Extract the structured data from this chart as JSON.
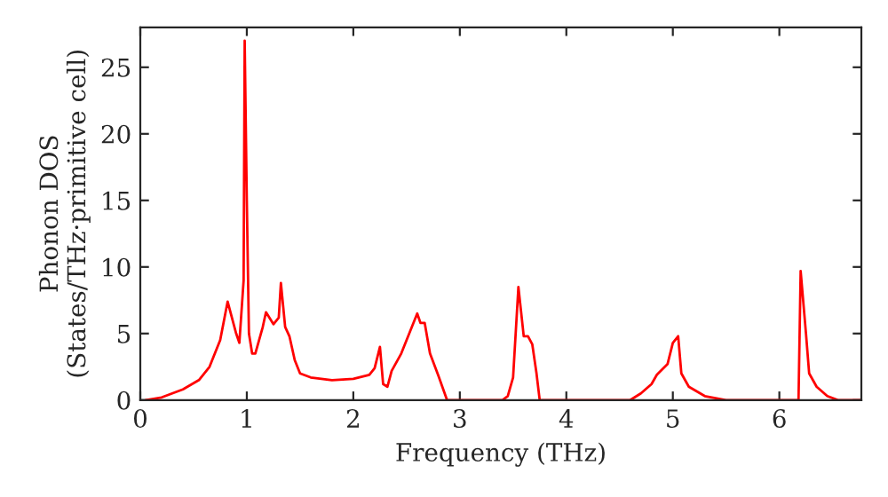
{
  "chart_data": {
    "type": "line",
    "xlabel": "Frequency (THz)",
    "ylabel": "Phonon DOS\n(States/THz·primitive cell)",
    "x": [
      0.05,
      0.2,
      0.4,
      0.55,
      0.65,
      0.75,
      0.82,
      0.9,
      0.93,
      0.97,
      0.98,
      1.0,
      1.02,
      1.05,
      1.08,
      1.15,
      1.18,
      1.25,
      1.3,
      1.32,
      1.36,
      1.4,
      1.45,
      1.5,
      1.6,
      1.8,
      2.0,
      2.15,
      2.2,
      2.25,
      2.28,
      2.32,
      2.36,
      2.45,
      2.55,
      2.6,
      2.63,
      2.67,
      2.72,
      2.8,
      2.88,
      3.4,
      3.45,
      3.5,
      3.55,
      3.6,
      3.64,
      3.68,
      3.72,
      3.75,
      4.6,
      4.7,
      4.8,
      4.85,
      4.95,
      5.0,
      5.05,
      5.08,
      5.15,
      5.3,
      5.5,
      6.18,
      6.2,
      6.25,
      6.28,
      6.35,
      6.45,
      6.55,
      6.77
    ],
    "series": [
      {
        "color": "#ff0000",
        "values": [
          0,
          0.2,
          0.8,
          1.5,
          2.5,
          4.5,
          7.4,
          5,
          4.3,
          9,
          27,
          15,
          5,
          3.5,
          3.5,
          5.5,
          6.6,
          5.7,
          6.2,
          8.8,
          5.5,
          4.8,
          3,
          2,
          1.7,
          1.5,
          1.6,
          1.9,
          2.4,
          4.0,
          1.2,
          1.0,
          2.2,
          3.5,
          5.5,
          6.5,
          5.8,
          5.8,
          3.5,
          1.8,
          0,
          0,
          0.3,
          1.7,
          8.5,
          4.8,
          4.8,
          4.2,
          2,
          0,
          0,
          0.5,
          1.2,
          1.9,
          2.7,
          4.3,
          4.8,
          2,
          1,
          0.3,
          0,
          0,
          9.7,
          5,
          2,
          1,
          0.3,
          0,
          0
        ]
      }
    ],
    "xlim": [
      0,
      6.77
    ],
    "ylim": [
      0,
      28
    ],
    "xticks": [
      0,
      1,
      2,
      3,
      4,
      5,
      6
    ],
    "yticks": [
      0,
      5,
      10,
      15,
      20,
      25
    ],
    "grid": false,
    "legend": false
  }
}
